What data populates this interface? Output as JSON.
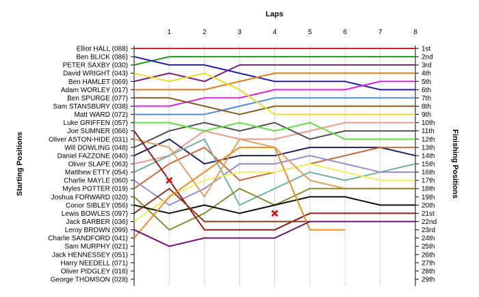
{
  "chart_data": {
    "type": "line",
    "title": "Laps",
    "xlabel": "Laps",
    "ylabel_left": "Starting Positions",
    "ylabel_right": "Finishing Positions",
    "x": [
      0,
      1,
      2,
      3,
      4,
      5,
      6,
      7,
      8
    ],
    "x_tick_labels": [
      "1",
      "2",
      "3",
      "4",
      "5",
      "6",
      "7",
      "8"
    ],
    "xlim": [
      0,
      8
    ],
    "ylim": [
      1,
      29
    ],
    "grid": "vertical",
    "starting_grid": [
      "Elliot HALL (088)",
      "Ben BLICK (086)",
      "PETER SAXBY (030)",
      "David WRIGHT (043)",
      "Ben HAMLET (069)",
      "Adam WORLEY (017)",
      "Ben SPURGE (077)",
      "Sam STANSBURY (038)",
      "Matt WARD (072)",
      "Luke GRIFFEN (057)",
      "Joe SUMNER (066)",
      "Oliver ASTON-HIDE (031)",
      "Will DOWLING (048)",
      "Daniel FAZZONE (040)",
      "Oliver SLAPE (063)",
      "Matthew ETTY (054)",
      "Charlie MAYLE (060)",
      "Myles POTTER (019)",
      "Joshua FORWARD (020)",
      "Conor SIBLEY (056)",
      "Lewis BOWLES (097)",
      "Jack BARBER (036)",
      "Leroy BROWN (099)",
      "Charlie SANDFORD (041)",
      "Sam MURPHY (021)",
      "Jack HENNESSEY (051)",
      "Harry NEEDELL (071)",
      "Oliver PIDGLEY (016)",
      "George THOMSON (028)"
    ],
    "finishing_labels": [
      "1st",
      "2nd",
      "3rd",
      "4th",
      "5th",
      "6th",
      "7th",
      "8th",
      "9th",
      "10th",
      "11th",
      "12th",
      "13th",
      "14th",
      "15th",
      "16th",
      "17th",
      "18th",
      "19th",
      "20th",
      "21st",
      "22nd",
      "23rd",
      "24th",
      "25th",
      "26th",
      "27th",
      "28th",
      "29th"
    ],
    "series": [
      {
        "color": "#d62020",
        "positions": [
          1,
          1,
          1,
          1,
          1,
          1,
          1,
          1,
          1
        ]
      },
      {
        "color": "#1a9a1a",
        "positions": [
          3,
          2,
          2,
          2,
          2,
          2,
          2,
          2,
          2
        ]
      },
      {
        "color": "#1f1fb0",
        "positions": [
          2,
          3,
          3,
          4,
          5,
          5,
          5,
          6,
          6
        ]
      },
      {
        "color": "#7a1f7a",
        "positions": [
          5,
          4,
          5,
          3,
          3,
          3,
          3,
          3,
          3
        ]
      },
      {
        "color": "#e07a1a",
        "positions": [
          6,
          6,
          6,
          5,
          4,
          4,
          4,
          4,
          4
        ]
      },
      {
        "color": "#e020e0",
        "positions": [
          8,
          8,
          7,
          7,
          6,
          6,
          6,
          5,
          5
        ]
      },
      {
        "color": "#4a8ae0",
        "positions": [
          9,
          9,
          9,
          8,
          7,
          7,
          7,
          7,
          7
        ]
      },
      {
        "color": "#8a5a1a",
        "positions": [
          7,
          7,
          8,
          9,
          8,
          8,
          8,
          8,
          8
        ]
      },
      {
        "color": "#e8e020",
        "positions": [
          4,
          5,
          4,
          6,
          9,
          9,
          9,
          9,
          9
        ]
      },
      {
        "color": "#e89a8a",
        "positions": [
          15,
          14,
          11,
          12,
          12,
          11,
          10,
          10,
          10
        ]
      },
      {
        "color": "#505050",
        "positions": [
          13,
          11,
          10,
          11,
          10,
          12,
          11,
          11,
          11
        ]
      },
      {
        "color": "#60e040",
        "positions": [
          10,
          10,
          11,
          10,
          11,
          10,
          12,
          12,
          12
        ]
      },
      {
        "color": "#202060",
        "positions": [
          14,
          12,
          15,
          14,
          14,
          13,
          13,
          13,
          14
        ]
      },
      {
        "color": "#c86a3a",
        "positions": [
          18,
          15,
          13,
          17,
          16,
          15,
          14,
          13,
          13
        ]
      },
      {
        "color": "#70b0a0",
        "positions": [
          16,
          14,
          12,
          20,
          18,
          16,
          17,
          16,
          15
        ]
      },
      {
        "color": "#9a8ad0",
        "positions": [
          17,
          20,
          18,
          15,
          15,
          14,
          15,
          16,
          16
        ]
      },
      {
        "color": "#f0f060",
        "positions": [
          22,
          19,
          17,
          16,
          16,
          15,
          16,
          17,
          17
        ]
      },
      {
        "color": "#e0a060",
        "positions": [
          12,
          13,
          19,
          12,
          13,
          17,
          18,
          18,
          18
        ]
      },
      {
        "color": "#8a8a30",
        "positions": [
          19,
          23,
          21,
          18,
          20,
          18,
          18,
          18,
          18
        ]
      },
      {
        "color": "#101010",
        "positions": [
          20,
          21,
          20,
          21,
          20,
          19,
          19,
          20,
          20
        ]
      },
      {
        "color": "#8a1a1a",
        "positions": [
          11,
          17,
          23,
          23,
          23,
          21,
          21,
          21,
          21
        ]
      },
      {
        "color": "#8a3a1a",
        "positions": [
          21,
          18,
          22,
          22,
          22,
          22,
          22,
          22,
          22
        ]
      },
      {
        "color": "#f08a20",
        "positions": [
          24,
          19,
          16,
          13,
          13,
          23,
          23
        ]
      },
      {
        "color": "#701070",
        "positions": [
          23,
          25,
          24,
          24,
          24,
          22,
          22,
          22,
          22
        ]
      }
    ],
    "retirements": [
      {
        "lap": 1,
        "position": 17
      },
      {
        "lap": 4,
        "position": 21
      }
    ]
  }
}
